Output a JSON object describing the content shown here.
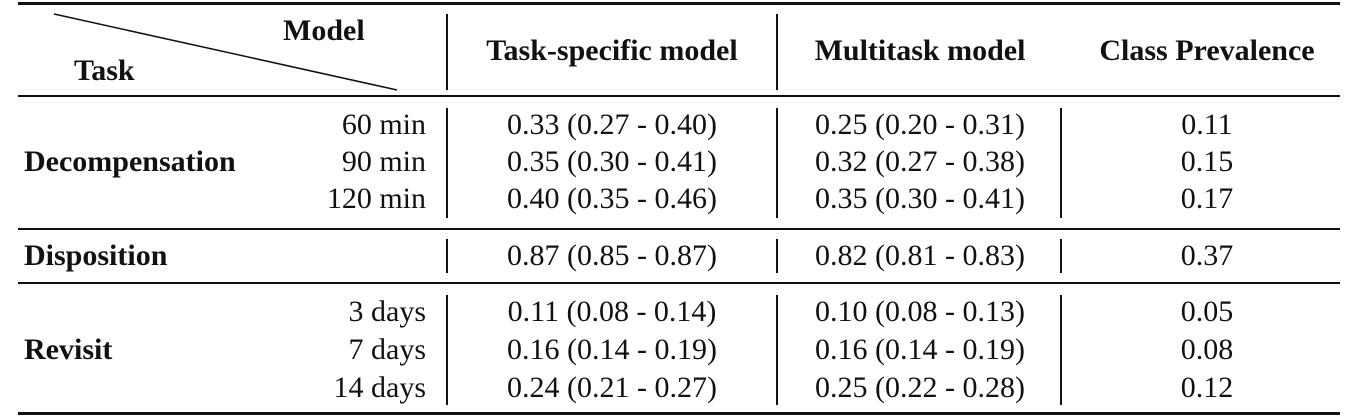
{
  "header": {
    "task": "Task",
    "model": "Model",
    "task_specific": "Task-specific model",
    "multitask": "Multitask model",
    "class_prevalence": "Class Prevalence"
  },
  "groups": [
    {
      "task": "Decompensation",
      "rows": [
        {
          "sub": "60 min",
          "task_specific": "0.33 (0.27 - 0.40)",
          "multitask": "0.25 (0.20 - 0.31)",
          "prevalence": "0.11"
        },
        {
          "sub": "90 min",
          "task_specific": "0.35 (0.30 - 0.41)",
          "multitask": "0.32 (0.27 - 0.38)",
          "prevalence": "0.15"
        },
        {
          "sub": "120 min",
          "task_specific": "0.40 (0.35 - 0.46)",
          "multitask": "0.35 (0.30 - 0.41)",
          "prevalence": "0.17"
        }
      ]
    },
    {
      "task": "Disposition",
      "rows": [
        {
          "sub": "",
          "task_specific": "0.87 (0.85 - 0.87)",
          "multitask": "0.82 (0.81 - 0.83)",
          "prevalence": "0.37"
        }
      ]
    },
    {
      "task": "Revisit",
      "rows": [
        {
          "sub": "3 days",
          "task_specific": "0.11 (0.08 - 0.14)",
          "multitask": "0.10 (0.08 - 0.13)",
          "prevalence": "0.05"
        },
        {
          "sub": "7 days",
          "task_specific": "0.16 (0.14 - 0.19)",
          "multitask": "0.16 (0.14 - 0.19)",
          "prevalence": "0.08"
        },
        {
          "sub": "14 days",
          "task_specific": "0.24 (0.21 - 0.27)",
          "multitask": "0.25 (0.22 - 0.28)",
          "prevalence": "0.12"
        }
      ]
    }
  ]
}
